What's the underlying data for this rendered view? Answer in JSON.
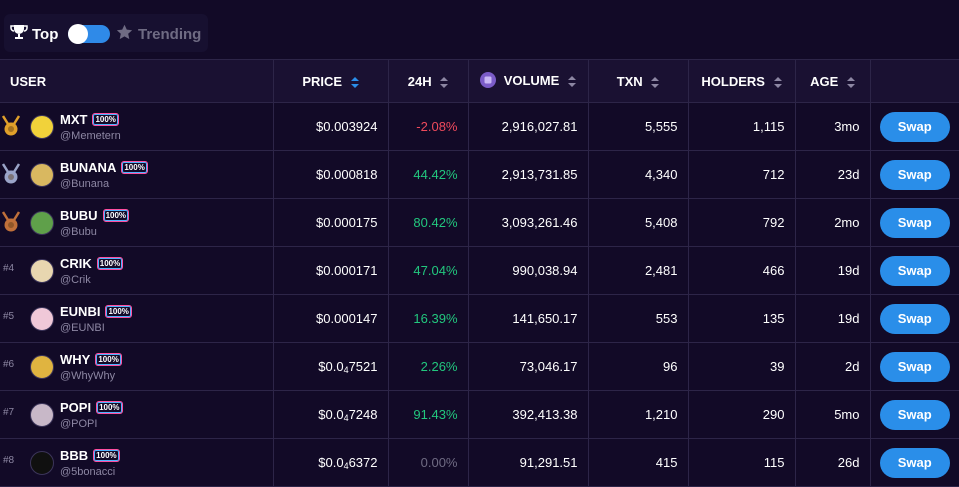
{
  "toggle": {
    "top_label": "Top",
    "trending_label": "Trending"
  },
  "table": {
    "headers": {
      "user": "USER",
      "price": "PRICE",
      "change": "24H",
      "volume": "VOLUME",
      "txn": "TXN",
      "holders": "HOLDERS",
      "age": "AGE"
    },
    "swap_label": "Swap",
    "rows": [
      {
        "rank": "",
        "medal": "gold",
        "name": "MXT",
        "handle": "@Memetern",
        "badge": "100%",
        "price_main": "$0.003924",
        "price_sub": "",
        "price_tail": "",
        "change": "-2.08%",
        "change_dir": "neg",
        "volume": "2,916,027.81",
        "txn": "5,555",
        "holders": "1,115",
        "age": "3mo",
        "avatar_color": "#f1d23a"
      },
      {
        "rank": "",
        "medal": "silver",
        "name": "BUNANA",
        "handle": "@Bunana",
        "badge": "100%",
        "price_main": "$0.000818",
        "price_sub": "",
        "price_tail": "",
        "change": "44.42%",
        "change_dir": "pos",
        "volume": "2,913,731.85",
        "txn": "4,340",
        "holders": "712",
        "age": "23d",
        "avatar_color": "#d9b860"
      },
      {
        "rank": "",
        "medal": "bronze",
        "name": "BUBU",
        "handle": "@Bubu",
        "badge": "100%",
        "price_main": "$0.000175",
        "price_sub": "",
        "price_tail": "",
        "change": "80.42%",
        "change_dir": "pos",
        "volume": "3,093,261.46",
        "txn": "5,408",
        "holders": "792",
        "age": "2mo",
        "avatar_color": "#5fa04a"
      },
      {
        "rank": "#4",
        "medal": "",
        "name": "CRIK",
        "handle": "@Crik",
        "badge": "100%",
        "price_main": "$0.000171",
        "price_sub": "",
        "price_tail": "",
        "change": "47.04%",
        "change_dir": "pos",
        "volume": "990,038.94",
        "txn": "2,481",
        "holders": "466",
        "age": "19d",
        "avatar_color": "#e8d6b0"
      },
      {
        "rank": "#5",
        "medal": "",
        "name": "EUNBI",
        "handle": "@EUNBI",
        "badge": "100%",
        "price_main": "$0.000147",
        "price_sub": "",
        "price_tail": "",
        "change": "16.39%",
        "change_dir": "pos",
        "volume": "141,650.17",
        "txn": "553",
        "holders": "135",
        "age": "19d",
        "avatar_color": "#f0c8d8"
      },
      {
        "rank": "#6",
        "medal": "",
        "name": "WHY",
        "handle": "@WhyWhy",
        "badge": "100%",
        "price_main": "$0.0",
        "price_sub": "4",
        "price_tail": "7521",
        "change": "2.26%",
        "change_dir": "pos",
        "volume": "73,046.17",
        "txn": "96",
        "holders": "39",
        "age": "2d",
        "avatar_color": "#e0b440"
      },
      {
        "rank": "#7",
        "medal": "",
        "name": "POPI",
        "handle": "@POPI",
        "badge": "100%",
        "price_main": "$0.0",
        "price_sub": "4",
        "price_tail": "7248",
        "change": "91.43%",
        "change_dir": "pos",
        "volume": "392,413.38",
        "txn": "1,210",
        "holders": "290",
        "age": "5mo",
        "avatar_color": "#c8b8c8"
      },
      {
        "rank": "#8",
        "medal": "",
        "name": "BBB",
        "handle": "@5bonacci",
        "badge": "100%",
        "price_main": "$0.0",
        "price_sub": "4",
        "price_tail": "6372",
        "change": "0.00%",
        "change_dir": "zero",
        "volume": "91,291.51",
        "txn": "415",
        "holders": "115",
        "age": "26d",
        "avatar_color": "#101010"
      }
    ]
  },
  "colors": {
    "accent": "#2a8ee9",
    "positive": "#22c77e",
    "negative": "#ee4a5c",
    "gold": "#e0a02a",
    "silver": "#9aa4c8",
    "bronze": "#c0703a"
  },
  "icons": {
    "top": "trophy-icon",
    "trending": "star-icon",
    "volume": "coin-icon",
    "sort": "sort-arrows-icon"
  }
}
